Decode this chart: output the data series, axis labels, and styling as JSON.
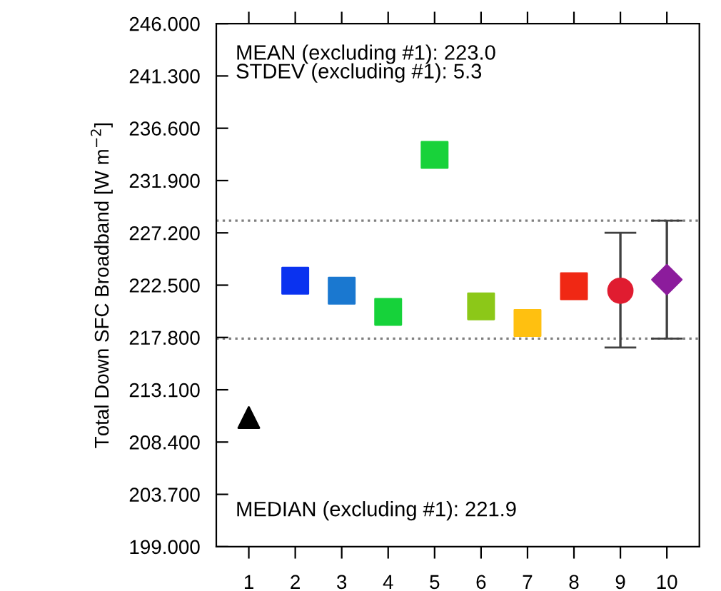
{
  "chart_data": {
    "type": "scatter",
    "ylabel": "Total Down SFC Broadband [W m$^{−2}$]",
    "categories": [
      "1",
      "2",
      "3",
      "4",
      "5",
      "6",
      "7",
      "8",
      "9",
      "10"
    ],
    "series": [
      {
        "x": [
          "1"
        ],
        "values": [
          210.6
        ],
        "colors": [
          "#000000"
        ],
        "marker": "triangle"
      },
      {
        "x": [
          "2",
          "3",
          "4",
          "5",
          "6",
          "7",
          "8"
        ],
        "values": [
          222.9,
          222.0,
          220.1,
          234.2,
          220.6,
          219.1,
          222.4
        ],
        "colors": [
          "#0a32f0",
          "#1a78d0",
          "#16d23a",
          "#18d23a",
          "#8cc818",
          "#ffc010",
          "#f02814"
        ],
        "marker": "square"
      },
      {
        "x": [
          "9"
        ],
        "values": [
          222.0
        ],
        "colors": [
          "#e01c30"
        ],
        "marker": "circle",
        "errors": [
          [
            216.9,
            227.2
          ]
        ]
      },
      {
        "x": [
          "10"
        ],
        "values": [
          223.0
        ],
        "colors": [
          "#8c1c9c"
        ],
        "marker": "diamond",
        "errors": [
          [
            217.7,
            228.3
          ]
        ]
      }
    ],
    "ylim": [
      199.0,
      246.0
    ],
    "yticks": [
      {
        "value": 199.0,
        "label": "199.000"
      },
      {
        "value": 203.7,
        "label": "203.700"
      },
      {
        "value": 208.4,
        "label": "208.400"
      },
      {
        "value": 213.1,
        "label": "213.100"
      },
      {
        "value": 217.8,
        "label": "217.800"
      },
      {
        "value": 222.5,
        "label": "222.500"
      },
      {
        "value": 227.2,
        "label": "227.200"
      },
      {
        "value": 231.9,
        "label": "231.900"
      },
      {
        "value": 236.6,
        "label": "236.600"
      },
      {
        "value": 241.3,
        "label": "241.300"
      },
      {
        "value": 246.0,
        "label": "246.000"
      }
    ],
    "ref_lines": [
      {
        "axis": "y",
        "value": 228.3,
        "line_style": "dotted",
        "color": "#808080"
      },
      {
        "axis": "y",
        "value": 217.7,
        "line_style": "dotted",
        "color": "#808080"
      }
    ],
    "annotations": [
      "MEAN (excluding #1): 223.0\nSTDEV (excluding #1): 5.3",
      "MEDIAN (excluding #1): 221.9"
    ],
    "grid": false,
    "legend": false
  }
}
